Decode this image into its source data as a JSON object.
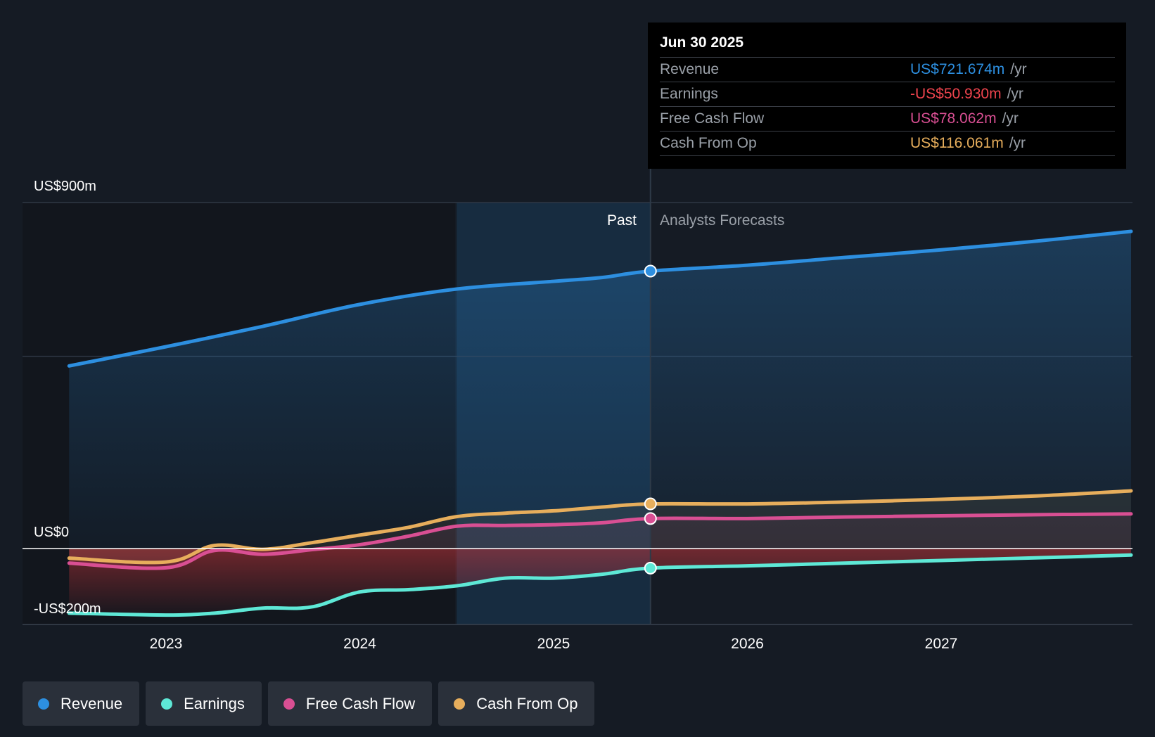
{
  "chart_data": {
    "type": "line",
    "y_axis_labels": {
      "top": "US$900m",
      "zero": "US$0",
      "bottom": "-US$200m"
    },
    "ylim": [
      -200,
      900
    ],
    "gridlines": [
      900,
      500,
      0
    ],
    "x_ticks": [
      "2023",
      "2024",
      "2025",
      "2026",
      "2027"
    ],
    "x_tick_values": [
      2023.0,
      2024.0,
      2025.0,
      2026.0,
      2027.0
    ],
    "xlim": [
      2022.25,
      2027.98
    ],
    "past_region_start": 2024.5,
    "divider_x": 2025.5,
    "past_label": "Past",
    "forecast_label": "Analysts Forecasts",
    "series": [
      {
        "name": "Revenue",
        "color": "#2d8fe0",
        "x": [
          2022.5,
          2023.0,
          2023.5,
          2024.0,
          2024.5,
          2025.0,
          2025.25,
          2025.5,
          2026.0,
          2026.5,
          2027.0,
          2027.5,
          2027.98
        ],
        "values": [
          475,
          525,
          578,
          635,
          675,
          695,
          705,
          721.674,
          737,
          757,
          777,
          800,
          825
        ]
      },
      {
        "name": "Earnings",
        "color": "#5ee8d6",
        "x": [
          2022.5,
          2023.0,
          2023.25,
          2023.5,
          2023.75,
          2024.0,
          2024.25,
          2024.5,
          2024.75,
          2025.0,
          2025.25,
          2025.5,
          2026.0,
          2026.5,
          2027.0,
          2027.5,
          2027.98
        ],
        "values": [
          -168,
          -173,
          -168,
          -155,
          -152,
          -113,
          -107,
          -97,
          -77,
          -77,
          -67,
          -50.93,
          -45,
          -38,
          -31,
          -24,
          -17
        ]
      },
      {
        "name": "Free Cash Flow",
        "color": "#d94f93",
        "x": [
          2022.5,
          2023.0,
          2023.25,
          2023.5,
          2023.75,
          2024.0,
          2024.25,
          2024.5,
          2024.75,
          2025.0,
          2025.25,
          2025.5,
          2026.0,
          2026.5,
          2027.0,
          2027.5,
          2027.98
        ],
        "values": [
          -38,
          -50,
          -5,
          -15,
          -3,
          10,
          32,
          58,
          60,
          62,
          67,
          78.062,
          78,
          82,
          85,
          88,
          90
        ]
      },
      {
        "name": "Cash From Op",
        "color": "#e7ae5c",
        "x": [
          2022.5,
          2023.0,
          2023.25,
          2023.5,
          2023.75,
          2024.0,
          2024.25,
          2024.5,
          2024.75,
          2025.0,
          2025.25,
          2025.5,
          2026.0,
          2026.5,
          2027.0,
          2027.5,
          2027.98
        ],
        "values": [
          -25,
          -35,
          8,
          -2,
          15,
          35,
          55,
          83,
          92,
          98,
          108,
          116.061,
          116,
          121,
          128,
          137,
          150
        ]
      }
    ],
    "highlight_x": 2025.5
  },
  "tooltip": {
    "date": "Jun 30 2025",
    "rows": [
      {
        "label": "Revenue",
        "value": "US$721.674m",
        "unit": "/yr",
        "color": "#2d8fe0"
      },
      {
        "label": "Earnings",
        "value": "-US$50.930m",
        "unit": "/yr",
        "color": "#f0444e"
      },
      {
        "label": "Free Cash Flow",
        "value": "US$78.062m",
        "unit": "/yr",
        "color": "#d94f93"
      },
      {
        "label": "Cash From Op",
        "value": "US$116.061m",
        "unit": "/yr",
        "color": "#e7ae5c"
      }
    ]
  },
  "legend": [
    {
      "label": "Revenue",
      "color": "#2d8fe0"
    },
    {
      "label": "Earnings",
      "color": "#5ee8d6"
    },
    {
      "label": "Free Cash Flow",
      "color": "#d94f93"
    },
    {
      "label": "Cash From Op",
      "color": "#e7ae5c"
    }
  ]
}
